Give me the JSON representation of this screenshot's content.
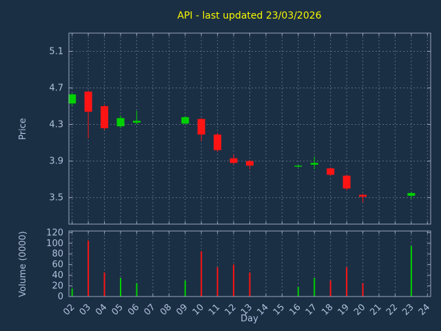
{
  "colors": {
    "background": "#1b2f44",
    "title": "#f8f800",
    "axis_text": "#b0c0dd",
    "grid": "#5c6b82",
    "border": "#9aa7bd",
    "up": "#00d000",
    "down": "#ff1414"
  },
  "chart_data": {
    "type": "candlestick",
    "title": "API - last updated 23/03/2026",
    "xlabel": "Day",
    "x_ticks": [
      "02",
      "03",
      "04",
      "05",
      "06",
      "07",
      "08",
      "09",
      "10",
      "11",
      "12",
      "13",
      "14",
      "15",
      "16",
      "17",
      "18",
      "19",
      "20",
      "21",
      "22",
      "23",
      "24"
    ],
    "price": {
      "ylabel": "Price",
      "ylim": [
        3.21,
        5.3
      ],
      "yticks": [
        3.5,
        3.9,
        4.3,
        4.7,
        5.1
      ],
      "candles": [
        {
          "day": 2,
          "open": 4.53,
          "high": 4.64,
          "low": 4.5,
          "close": 4.63
        },
        {
          "day": 3,
          "open": 4.66,
          "high": 4.67,
          "low": 4.15,
          "close": 4.44
        },
        {
          "day": 4,
          "open": 4.5,
          "high": 4.52,
          "low": 4.24,
          "close": 4.26
        },
        {
          "day": 5,
          "open": 4.28,
          "high": 4.4,
          "low": 4.26,
          "close": 4.37
        },
        {
          "day": 6,
          "open": 4.32,
          "high": 4.45,
          "low": 4.3,
          "close": 4.34
        },
        {
          "day": 9,
          "open": 4.31,
          "high": 4.39,
          "low": 4.3,
          "close": 4.38
        },
        {
          "day": 10,
          "open": 4.36,
          "high": 4.37,
          "low": 4.12,
          "close": 4.19
        },
        {
          "day": 11,
          "open": 4.19,
          "high": 4.21,
          "low": 4.0,
          "close": 4.02
        },
        {
          "day": 12,
          "open": 3.93,
          "high": 3.97,
          "low": 3.86,
          "close": 3.88
        },
        {
          "day": 13,
          "open": 3.9,
          "high": 3.91,
          "low": 3.81,
          "close": 3.85
        },
        {
          "day": 16,
          "open": 3.84,
          "high": 3.86,
          "low": 3.83,
          "close": 3.85
        },
        {
          "day": 17,
          "open": 3.86,
          "high": 3.95,
          "low": 3.81,
          "close": 3.88
        },
        {
          "day": 18,
          "open": 3.82,
          "high": 3.83,
          "low": 3.74,
          "close": 3.75
        },
        {
          "day": 19,
          "open": 3.74,
          "high": 3.75,
          "low": 3.58,
          "close": 3.6
        },
        {
          "day": 20,
          "open": 3.53,
          "high": 3.54,
          "low": 3.45,
          "close": 3.51
        },
        {
          "day": 23,
          "open": 3.52,
          "high": 3.56,
          "low": 3.49,
          "close": 3.55
        }
      ]
    },
    "volume": {
      "ylabel": "Volume (0000)",
      "ylim": [
        0,
        123
      ],
      "yticks": [
        0,
        20,
        40,
        60,
        80,
        100,
        120
      ],
      "bars": [
        {
          "day": 2,
          "value": 15,
          "direction": "up"
        },
        {
          "day": 3,
          "value": 105,
          "direction": "down"
        },
        {
          "day": 4,
          "value": 45,
          "direction": "down"
        },
        {
          "day": 5,
          "value": 35,
          "direction": "up"
        },
        {
          "day": 6,
          "value": 25,
          "direction": "up"
        },
        {
          "day": 9,
          "value": 30,
          "direction": "up"
        },
        {
          "day": 10,
          "value": 85,
          "direction": "down"
        },
        {
          "day": 11,
          "value": 55,
          "direction": "down"
        },
        {
          "day": 12,
          "value": 60,
          "direction": "down"
        },
        {
          "day": 13,
          "value": 45,
          "direction": "down"
        },
        {
          "day": 16,
          "value": 18,
          "direction": "up"
        },
        {
          "day": 17,
          "value": 35,
          "direction": "up"
        },
        {
          "day": 18,
          "value": 30,
          "direction": "down"
        },
        {
          "day": 19,
          "value": 55,
          "direction": "down"
        },
        {
          "day": 20,
          "value": 25,
          "direction": "down"
        },
        {
          "day": 23,
          "value": 95,
          "direction": "up"
        }
      ]
    }
  }
}
